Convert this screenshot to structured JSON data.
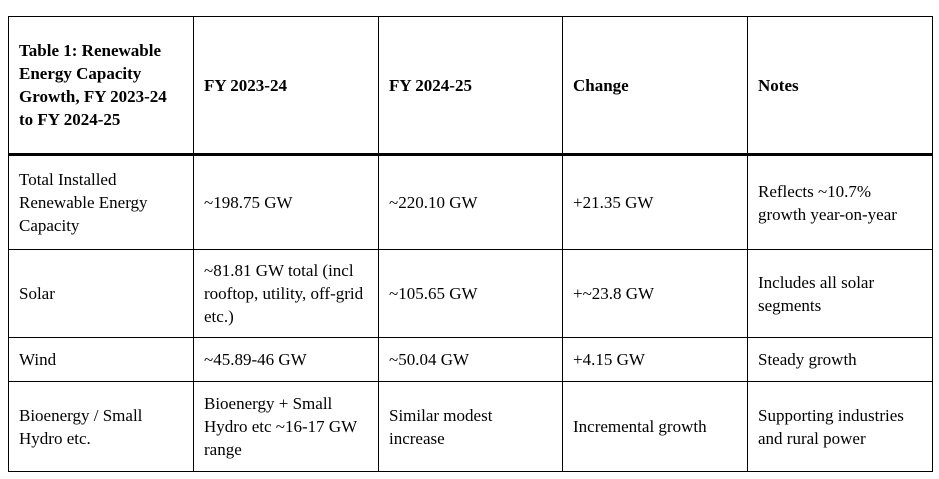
{
  "table": {
    "headers": [
      "Table 1: Renewable Energy Capacity Growth, FY 2023-24 to FY 2024-25",
      "FY 2023-24",
      "FY 2024-25",
      "Change",
      "Notes"
    ],
    "rows": [
      [
        "Total Installed Renewable Energy Capacity",
        "~198.75 GW",
        "~220.10 GW",
        "+21.35 GW",
        "Reflects ~10.7% growth year-on-year"
      ],
      [
        "Solar",
        "~81.81 GW total (incl rooftop, utility, off-grid etc.)",
        "~105.65 GW",
        "+~23.8 GW",
        "Includes all solar segments"
      ],
      [
        "Wind",
        "~45.89-46 GW",
        "~50.04 GW",
        "+4.15 GW",
        "Steady growth"
      ],
      [
        "Bioenergy / Small Hydro etc.",
        "Bioenergy + Small Hydro etc ~16-17 GW range",
        "Similar modest increase",
        "Incremental growth",
        "Supporting industries and rural power"
      ]
    ]
  }
}
